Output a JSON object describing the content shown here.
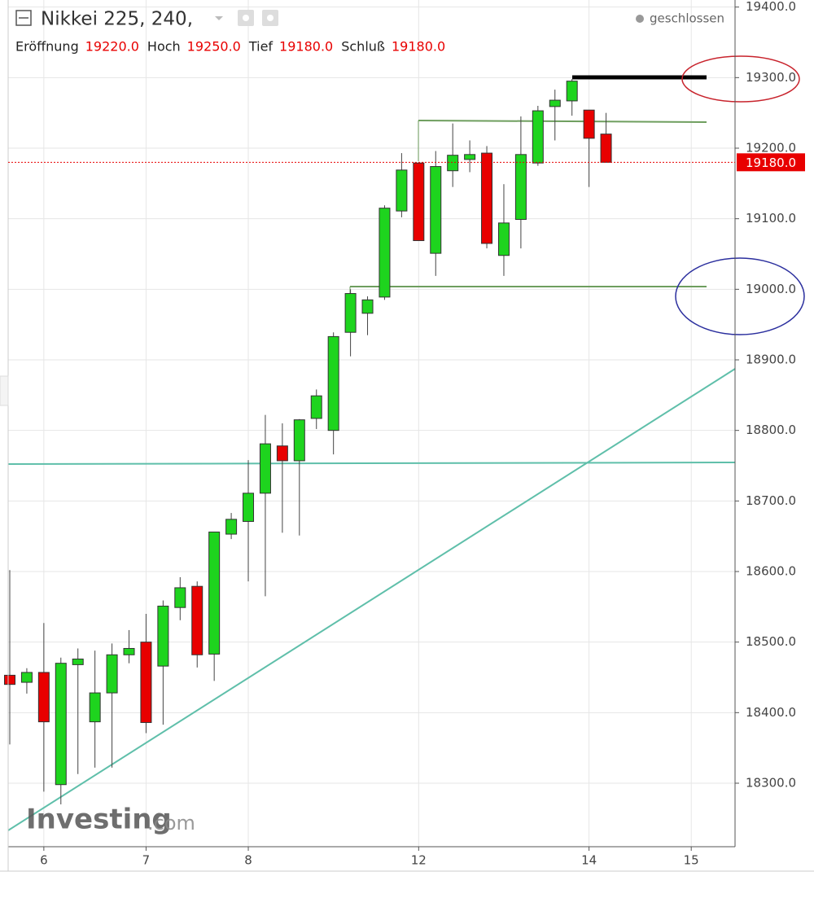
{
  "chart_data": {
    "type": "candlestick",
    "title": "Nikkei 225, 240,",
    "status": "geschlossen",
    "legend": [
      {
        "label": "Eröffnung",
        "value": "19220.0"
      },
      {
        "label": "Hoch",
        "value": "19250.0"
      },
      {
        "label": "Tief",
        "value": "19180.0"
      },
      {
        "label": "Schluß",
        "value": "19180.0"
      }
    ],
    "watermark": "Investing",
    "watermark_suffix": ".com",
    "last_price": {
      "value": 19180,
      "label": "19180.0"
    },
    "up_color": "#1ed41e",
    "down_color": "#e80000",
    "categories": [
      null,
      null,
      "6",
      null,
      null,
      null,
      null,
      null,
      "7",
      null,
      null,
      null,
      null,
      null,
      "8",
      null,
      null,
      null,
      null,
      null,
      null,
      null,
      null,
      null,
      "12",
      null,
      null,
      null,
      null,
      null,
      null,
      null,
      null,
      null,
      "14",
      null,
      null,
      null,
      null,
      null,
      "15",
      null,
      null
    ],
    "open": [
      18453,
      18443,
      18457,
      18298,
      18468,
      18387,
      18428,
      18482,
      18500,
      18466,
      18549,
      18579,
      18483,
      18653,
      18671,
      18711,
      18778,
      18757,
      18817,
      18800,
      18939,
      18966,
      18989,
      19111,
      19179,
      19051,
      19168,
      19184,
      19193,
      19048,
      19099,
      19179,
      19259,
      19267,
      19254,
      19220,
      null,
      null,
      null,
      null,
      null,
      null,
      null
    ],
    "high": [
      18602,
      18463,
      18527,
      18478,
      18491,
      18488,
      18498,
      18517,
      18540,
      18559,
      18592,
      18586,
      18656,
      18683,
      18758,
      18822,
      18810,
      18816,
      18858,
      18939,
      19000,
      18990,
      19119,
      19193,
      19179,
      19196,
      19235,
      19211,
      19203,
      19149,
      19245,
      19260,
      19283,
      19298,
      19254,
      19250,
      null,
      null,
      null,
      null,
      null,
      null,
      null
    ],
    "low": [
      18355,
      18427,
      18288,
      18270,
      18313,
      18322,
      18322,
      18470,
      18371,
      18383,
      18531,
      18464,
      18445,
      18646,
      18586,
      18565,
      18655,
      18651,
      18802,
      18766,
      18905,
      18935,
      18985,
      19102,
      19069,
      19019,
      19145,
      19166,
      19058,
      19019,
      19058,
      19175,
      19211,
      19246,
      19145,
      19180,
      null,
      null,
      null,
      null,
      null,
      null,
      null
    ],
    "close": [
      18440,
      18457,
      18387,
      18470,
      18476,
      18428,
      18482,
      18491,
      18386,
      18551,
      18577,
      18482,
      18656,
      18674,
      18711,
      18781,
      18757,
      18815,
      18849,
      18933,
      18994,
      18985,
      19115,
      19169,
      19069,
      19174,
      19190,
      19191,
      19065,
      19094,
      19191,
      19253,
      19268,
      19295,
      19214,
      19180,
      null,
      null,
      null,
      null,
      null,
      null,
      null
    ],
    "ylim": [
      18210,
      19410
    ],
    "yticks": [
      {
        "value": 18300,
        "label": "18300.0"
      },
      {
        "value": 18400,
        "label": "18400.0"
      },
      {
        "value": 18500,
        "label": "18500.0"
      },
      {
        "value": 18600,
        "label": "18600.0"
      },
      {
        "value": 18700,
        "label": "18700.0"
      },
      {
        "value": 18800,
        "label": "18800.0"
      },
      {
        "value": 18900,
        "label": "18900.0"
      },
      {
        "value": 19000,
        "label": "19000.0"
      },
      {
        "value": 19100,
        "label": "19100.0"
      },
      {
        "value": 19200,
        "label": "19200.0"
      },
      {
        "value": 19300,
        "label": "19300.0"
      },
      {
        "value": 19400,
        "label": "19400.0"
      }
    ],
    "grid": true
  }
}
